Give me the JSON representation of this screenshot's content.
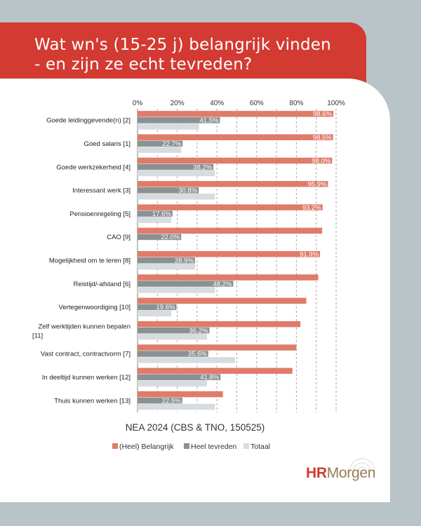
{
  "header": {
    "title_line1": "Wat wn's (15-25 j) belangrijk vinden",
    "title_line2": "- en zijn ze echt tevreden?"
  },
  "logo": {
    "part1": "HR",
    "part2": "Morgen"
  },
  "colors": {
    "header_bg": "#d23a32",
    "belangrijk": "#e07b6a",
    "tevreden": "#8a9192",
    "totaal": "#d6dcdf",
    "logo_red": "#d23a32",
    "logo_brown": "#9a7c58"
  },
  "chart_data": {
    "type": "bar",
    "orientation": "horizontal",
    "title": "NEA 2024 (CBS & TNO, 150525)",
    "xlim": [
      0,
      100
    ],
    "ticks": [
      "0%",
      "20%",
      "40%",
      "60%",
      "80%",
      "100%"
    ],
    "grid": true,
    "legend_position": "bottom",
    "categories": [
      "Goede leidinggevende(n) [2]",
      "Goed salaris [1]",
      "Goede werkzekerheid [4]",
      "Interessant werk [3]",
      "Pensioenregeling [5]",
      "CAO [9]",
      "Mogelijkheid om te leren [8]",
      "Reistijd/-afstand [6]",
      "Vertegenwoordiging [10]",
      "Zelf werktijden kunnen bepalen [11]",
      "Vast contract, contractvorm [7]",
      "In deeltijd kunnen werken [12]",
      "Thuis kunnen werken [13]"
    ],
    "series": [
      {
        "name": "(Heel) Belangrijk",
        "values": [
          98.6,
          98.5,
          98.0,
          95.9,
          93.2,
          93.0,
          91.9,
          91.0,
          85.0,
          82.0,
          80.0,
          78.0,
          43.0
        ],
        "labels": [
          "98.6%",
          "98.5%",
          "98.0%",
          "95.9%",
          "93.2%",
          "",
          "91.9%",
          "",
          "",
          "",
          "",
          "",
          ""
        ]
      },
      {
        "name": "Heel tevreden",
        "values": [
          41.5,
          22.7,
          38.2,
          30.8,
          17.6,
          22.0,
          28.9,
          48.2,
          19.6,
          36.2,
          35.6,
          41.8,
          22.5
        ],
        "labels": [
          "41.5%",
          "22.7%",
          "38.2%",
          "30.8%",
          "17.6%",
          "22.0%",
          "28.9%",
          "48.2%",
          "19.6%",
          "36.2%",
          "35.6%",
          "41.8%",
          "22.5%"
        ]
      },
      {
        "name": "Totaal",
        "values": [
          31,
          22,
          39,
          39,
          17,
          0,
          29,
          39,
          17,
          35,
          49,
          35,
          39
        ],
        "labels": []
      }
    ]
  }
}
